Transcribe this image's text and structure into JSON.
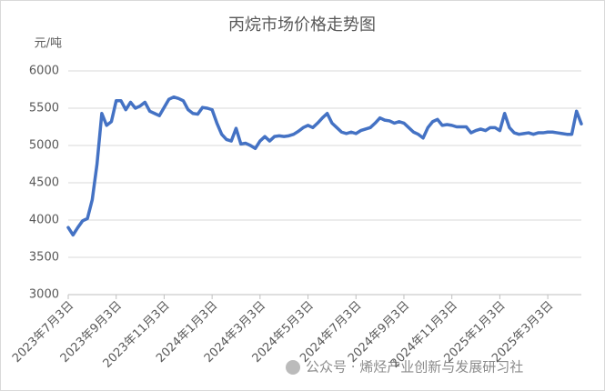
{
  "chart_data": {
    "type": "line",
    "title": "丙烷市场价格走势图",
    "y_label": "元/吨",
    "watermark": "公众号 · 烯烃产业创新与发展研习社",
    "categories": [
      "2023年7月3日",
      null,
      null,
      null,
      null,
      null,
      null,
      null,
      null,
      null,
      "2023年9月3日",
      null,
      null,
      null,
      null,
      null,
      null,
      null,
      null,
      null,
      "2023年11月3日",
      null,
      null,
      null,
      null,
      null,
      null,
      null,
      null,
      null,
      "2024年1月3日",
      null,
      null,
      null,
      null,
      null,
      null,
      null,
      null,
      null,
      "2024年3月3日",
      null,
      null,
      null,
      null,
      null,
      null,
      null,
      null,
      null,
      "2024年5月3日",
      null,
      null,
      null,
      null,
      null,
      null,
      null,
      null,
      null,
      "2024年7月3日",
      null,
      null,
      null,
      null,
      null,
      null,
      null,
      null,
      null,
      "2024年9月3日",
      null,
      null,
      null,
      null,
      null,
      null,
      null,
      null,
      null,
      "2024年11月3日",
      null,
      null,
      null,
      null,
      null,
      null,
      null,
      null,
      null,
      "2025年1月3日",
      null,
      null,
      null,
      null,
      null,
      null,
      null,
      null,
      null,
      "2025年3月3日",
      null,
      null,
      null,
      null,
      null,
      null,
      null
    ],
    "series": [
      {
        "name": "丙烷",
        "color": "#4472c4",
        "values": [
          3900,
          3800,
          3900,
          3990,
          4020,
          4270,
          4750,
          5430,
          5270,
          5320,
          5600,
          5600,
          5480,
          5580,
          5500,
          5530,
          5580,
          5460,
          5430,
          5400,
          5510,
          5620,
          5650,
          5630,
          5600,
          5480,
          5430,
          5420,
          5510,
          5500,
          5480,
          5300,
          5150,
          5080,
          5060,
          5230,
          5020,
          5030,
          5000,
          4960,
          5060,
          5120,
          5060,
          5120,
          5130,
          5120,
          5130,
          5150,
          5190,
          5240,
          5270,
          5240,
          5300,
          5370,
          5430,
          5300,
          5240,
          5180,
          5160,
          5180,
          5160,
          5200,
          5220,
          5240,
          5300,
          5370,
          5340,
          5330,
          5300,
          5320,
          5300,
          5240,
          5180,
          5150,
          5100,
          5240,
          5320,
          5350,
          5270,
          5280,
          5270,
          5250,
          5250,
          5250,
          5170,
          5200,
          5220,
          5200,
          5240,
          5240,
          5200,
          5430,
          5240,
          5170,
          5150,
          5160,
          5170,
          5150,
          5170,
          5170,
          5180,
          5180,
          5170,
          5160,
          5150,
          5150,
          5460,
          5290
        ]
      }
    ],
    "ylim": [
      3000,
      6000
    ],
    "yticks": [
      3000,
      3500,
      4000,
      4500,
      5000,
      5500,
      6000
    ],
    "grid": true
  }
}
